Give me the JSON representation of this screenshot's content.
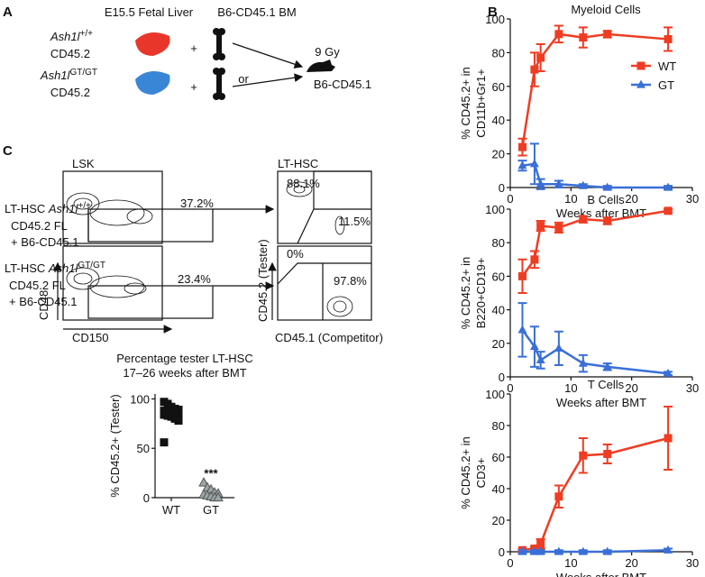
{
  "panel_labels": {
    "a": "A",
    "b": "B",
    "c": "C"
  },
  "panel_a": {
    "fetal_liver": "E15.5 Fetal Liver",
    "bm": "B6-CD45.1 BM",
    "wt_gene": "Ash1l",
    "wt_sup": "+/+",
    "wt_cd": "CD45.2",
    "gt_gene": "Ash1l",
    "gt_sup": "GT/GT",
    "gt_cd": "CD45.2",
    "plus": "+",
    "or": "or",
    "dose": "9 Gy",
    "recipient": "B6-CD45.1"
  },
  "panel_c_flow": {
    "lsk": "LSK",
    "lthsc": "LT-HSC",
    "row1": {
      "line1": "LT-HSC ",
      "gene": "Ash1l",
      "sup": "+/+",
      "line2": "CD45.2 FL",
      "line3": "+ B6-CD45.1"
    },
    "row2": {
      "line1": "LT-HSC ",
      "gene": "Ash1l",
      "sup": "GT/GT",
      "line2": "CD45.2 FL",
      "line3": "+ B6-CD45.1"
    },
    "lsk1": "37.2%",
    "tester1": "88.1%",
    "comp1": "11.5%",
    "lsk2": "23.4%",
    "tester2": "0%",
    "comp2": "97.8%",
    "cd48": "CD48",
    "cd150": "CD150",
    "cd452": "CD45.2 (Tester)",
    "cd451": "CD45.1 (Competitor)"
  },
  "chart_data": [
    {
      "type": "line",
      "title": "Myeloid Cells",
      "y_label": [
        "% CD45.2+ in",
        "CD11b+Gr1+"
      ],
      "x_label": "Weeks after BMT",
      "x": [
        2,
        4,
        5,
        8,
        12,
        16,
        26
      ],
      "series": [
        {
          "name": "WT",
          "color": "#f03c22",
          "marker": "square",
          "values": [
            24,
            70,
            77,
            91,
            89,
            91,
            88
          ],
          "errors": [
            5,
            10,
            8,
            5,
            6,
            2,
            7
          ]
        },
        {
          "name": "GT",
          "color": "#3a6fd8",
          "marker": "triangle",
          "values": [
            13,
            14,
            2,
            2,
            1,
            0,
            0
          ],
          "errors": [
            3,
            12,
            3,
            2,
            1,
            1,
            1
          ]
        }
      ],
      "xlim": [
        0,
        30
      ],
      "xticks": [
        0,
        10,
        20,
        30
      ],
      "ylim": [
        0,
        100
      ],
      "yticks": [
        0,
        20,
        40,
        60,
        80,
        100
      ],
      "legend": "upper right"
    },
    {
      "type": "line",
      "title": "B Cells",
      "y_label": [
        "% CD45.2+ in",
        "B220+CD19+"
      ],
      "x_label": "Weeks after BMT",
      "x": [
        2,
        4,
        5,
        8,
        12,
        16,
        26
      ],
      "series": [
        {
          "name": "WT",
          "color": "#f03c22",
          "marker": "square",
          "values": [
            60,
            70,
            90,
            89,
            94,
            93,
            99
          ],
          "errors": [
            10,
            5,
            3,
            3,
            2,
            2,
            1
          ]
        },
        {
          "name": "GT",
          "color": "#3a6fd8",
          "marker": "triangle",
          "values": [
            28,
            18,
            10,
            17,
            8,
            6,
            2
          ],
          "errors": [
            16,
            12,
            5,
            10,
            5,
            2,
            1
          ]
        }
      ],
      "xlim": [
        0,
        30
      ],
      "xticks": [
        0,
        10,
        20,
        30
      ],
      "ylim": [
        0,
        100
      ],
      "yticks": [
        0,
        20,
        40,
        60,
        80,
        100
      ]
    },
    {
      "type": "line",
      "title": "T Cells",
      "y_label": [
        "% CD45.2+ in",
        "CD3+"
      ],
      "x_label": "Weeks after BMT",
      "x": [
        2,
        4,
        5,
        8,
        12,
        16,
        26
      ],
      "series": [
        {
          "name": "WT",
          "color": "#f03c22",
          "marker": "square",
          "values": [
            1,
            2,
            5,
            35,
            61,
            62,
            72
          ],
          "errors": [
            1,
            1,
            3,
            7,
            11,
            6,
            20
          ]
        },
        {
          "name": "GT",
          "color": "#3a6fd8",
          "marker": "triangle",
          "values": [
            0,
            0,
            0,
            0,
            0,
            0,
            1
          ],
          "errors": [
            1,
            1,
            1,
            1,
            1,
            1,
            1
          ]
        }
      ],
      "xlim": [
        0,
        30
      ],
      "xticks": [
        0,
        10,
        20,
        30
      ],
      "ylim": [
        0,
        100
      ],
      "yticks": [
        0,
        20,
        40,
        60,
        80,
        100
      ]
    },
    {
      "type": "strip",
      "title": [
        "Percentage tester LT-HSC",
        "17–26 weeks after BMT"
      ],
      "y_label": "% CD45.2+ (Tester)",
      "categories": [
        "WT",
        "GT"
      ],
      "series": [
        {
          "color": "#111111",
          "marker": "square",
          "values": [
            97,
            95,
            92,
            90,
            89,
            88,
            87,
            86,
            86,
            85,
            84,
            83,
            82,
            80,
            78,
            56
          ]
        },
        {
          "color": "#9aa6a6",
          "marker": "triangle",
          "values": [
            15,
            10,
            8,
            5,
            4,
            3,
            2,
            1,
            0,
            0
          ]
        }
      ],
      "annotation": "***",
      "ylim": [
        0,
        105
      ],
      "yticks": [
        0,
        50,
        100
      ]
    }
  ]
}
